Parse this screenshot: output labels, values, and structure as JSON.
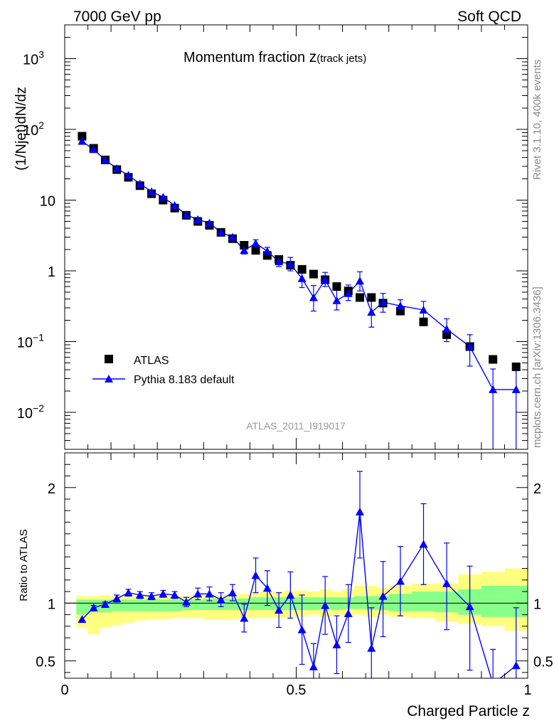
{
  "header": {
    "left": "7000 GeV pp",
    "right": "Soft QCD"
  },
  "side_labels": {
    "top": "Rivet 3.1.10,  400k events",
    "bottom": "mcplots.cern.ch [arXiv:1306.3436]"
  },
  "colors": {
    "data": "#000000",
    "mc": "#0000ff",
    "band_outer": "#ffff7f",
    "band_inner": "#88ff88"
  },
  "chart_data": [
    {
      "type": "scatter",
      "title": "Momentum fraction",
      "title_var": "z",
      "title_sub": "(track jets)",
      "ylabel": "(1/Njet)dN/dz",
      "xlabel": "",
      "yscale": "log",
      "ylim": [
        0.003,
        3000
      ],
      "xlim": [
        0,
        1
      ],
      "y_ticks": [
        {
          "value": 0.01,
          "base": "10",
          "exp": "−2"
        },
        {
          "value": 0.1,
          "base": "10",
          "exp": "−1"
        },
        {
          "value": 1,
          "base": "1",
          "exp": ""
        },
        {
          "value": 10,
          "base": "10",
          "exp": ""
        },
        {
          "value": 100,
          "base": "10",
          "exp": "2"
        },
        {
          "value": 1000,
          "base": "10",
          "exp": "3"
        }
      ],
      "watermark": "ATLAS_2011_I919017",
      "legend": [
        {
          "name": "ATLAS",
          "marker": "square"
        },
        {
          "name": "Pythia 8.183 default",
          "marker": "triangle"
        }
      ],
      "legend_position": "lower-left",
      "series": [
        {
          "name": "ATLAS",
          "x": [
            0.0375,
            0.0625,
            0.0875,
            0.1125,
            0.1375,
            0.1625,
            0.1875,
            0.2125,
            0.2375,
            0.2625,
            0.2875,
            0.3125,
            0.3375,
            0.3625,
            0.3875,
            0.4125,
            0.4375,
            0.4625,
            0.4875,
            0.5125,
            0.5375,
            0.5625,
            0.5875,
            0.6125,
            0.6375,
            0.6625,
            0.6875,
            0.725,
            0.775,
            0.825,
            0.875,
            0.925,
            0.975
          ],
          "y": [
            80,
            54,
            37,
            27,
            21,
            16,
            12.3,
            10,
            7.7,
            6.1,
            5.0,
            4.4,
            3.5,
            2.85,
            2.3,
            1.95,
            1.65,
            1.45,
            1.2,
            1.05,
            0.9,
            0.75,
            0.6,
            0.52,
            0.42,
            0.42,
            0.35,
            0.27,
            0.19,
            0.125,
            0.085,
            0.056,
            0.044
          ]
        },
        {
          "name": "Pythia 8.183 default",
          "x": [
            0.0375,
            0.0625,
            0.0875,
            0.1125,
            0.1375,
            0.1625,
            0.1875,
            0.2125,
            0.2375,
            0.2625,
            0.2875,
            0.3125,
            0.3375,
            0.3625,
            0.3875,
            0.4125,
            0.4375,
            0.4625,
            0.4875,
            0.5125,
            0.5375,
            0.5625,
            0.5875,
            0.6125,
            0.6375,
            0.6625,
            0.6875,
            0.725,
            0.775,
            0.825,
            0.875,
            0.925,
            0.975
          ],
          "y": [
            68,
            52,
            37,
            28,
            22.5,
            17,
            13.2,
            11,
            8.4,
            6.2,
            5.3,
            4.75,
            3.5,
            3.0,
            1.95,
            2.45,
            1.9,
            1.35,
            1.25,
            0.78,
            0.42,
            0.75,
            0.38,
            0.48,
            0.72,
            0.26,
            0.36,
            0.32,
            0.28,
            0.15,
            0.085,
            0.021,
            0.021
          ],
          "err_low": [
            0,
            0,
            0,
            0,
            0,
            0,
            0,
            0,
            0,
            0,
            0,
            0,
            0,
            0,
            0.22,
            0.3,
            0.25,
            0.2,
            0.25,
            0.2,
            0.15,
            0.15,
            0.1,
            0.1,
            0.2,
            0.1,
            0.1,
            0.06,
            0.07,
            0.05,
            0.04,
            0.02,
            0.02
          ],
          "err_high": [
            0,
            0,
            0,
            0,
            0,
            0,
            0,
            0,
            0,
            0,
            0,
            0,
            0,
            0,
            0.22,
            0.3,
            0.25,
            0.2,
            0.3,
            0.3,
            0.2,
            0.2,
            0.15,
            0.15,
            0.25,
            0.12,
            0.12,
            0.07,
            0.09,
            0.06,
            0.04,
            0.02,
            0.02
          ]
        }
      ]
    },
    {
      "type": "scatter",
      "title": "",
      "ylabel": "Ratio to ATLAS",
      "xlabel": "Charged Particle z",
      "ylim": [
        0.35,
        2.3
      ],
      "xlim": [
        0,
        1
      ],
      "y_ticks": [
        {
          "value": 0.5,
          "label": "0.5"
        },
        {
          "value": 1,
          "label": "1"
        },
        {
          "value": 2,
          "label": "2"
        }
      ],
      "x_ticks": [
        {
          "value": 0,
          "label": "0"
        },
        {
          "value": 0.5,
          "label": "0.5"
        },
        {
          "value": 1,
          "label": "1"
        }
      ],
      "reference_line": 1,
      "band_edges": [
        0.025,
        0.05,
        0.075,
        0.1,
        0.125,
        0.15,
        0.175,
        0.2,
        0.225,
        0.25,
        0.275,
        0.3,
        0.325,
        0.35,
        0.375,
        0.4,
        0.425,
        0.45,
        0.475,
        0.5,
        0.525,
        0.55,
        0.575,
        0.6,
        0.625,
        0.65,
        0.675,
        0.7,
        0.75,
        0.8,
        0.85,
        0.9,
        0.95,
        1.0
      ],
      "band_outer_low": [
        0.79,
        0.73,
        0.79,
        0.81,
        0.83,
        0.85,
        0.86,
        0.86,
        0.87,
        0.87,
        0.87,
        0.86,
        0.86,
        0.86,
        0.87,
        0.87,
        0.87,
        0.87,
        0.88,
        0.88,
        0.9,
        0.88,
        0.9,
        0.88,
        0.9,
        0.88,
        0.9,
        0.88,
        0.87,
        0.84,
        0.82,
        0.8,
        0.76
      ],
      "band_outer_high": [
        1.06,
        1.06,
        1.07,
        1.06,
        1.06,
        1.06,
        1.06,
        1.06,
        1.06,
        1.06,
        1.07,
        1.07,
        1.07,
        1.07,
        1.08,
        1.1,
        1.1,
        1.1,
        1.11,
        1.11,
        1.1,
        1.12,
        1.1,
        1.12,
        1.15,
        1.15,
        1.13,
        1.15,
        1.17,
        1.17,
        1.25,
        1.27,
        1.3
      ],
      "band_inner_low": [
        0.9,
        0.92,
        0.92,
        0.93,
        0.93,
        0.93,
        0.93,
        0.93,
        0.93,
        0.94,
        0.94,
        0.94,
        0.94,
        0.94,
        0.94,
        0.94,
        0.94,
        0.94,
        0.94,
        0.94,
        0.94,
        0.95,
        0.94,
        0.95,
        0.95,
        0.94,
        0.94,
        0.93,
        0.93,
        0.92,
        0.9,
        0.88,
        0.88
      ],
      "band_inner_high": [
        1.03,
        1.03,
        1.03,
        1.03,
        1.03,
        1.03,
        1.03,
        1.03,
        1.03,
        1.03,
        1.03,
        1.04,
        1.04,
        1.04,
        1.04,
        1.05,
        1.05,
        1.05,
        1.05,
        1.05,
        1.05,
        1.05,
        1.05,
        1.05,
        1.06,
        1.06,
        1.06,
        1.08,
        1.1,
        1.1,
        1.12,
        1.15,
        1.15
      ],
      "series": [
        {
          "name": "Pythia 8.183 default / ATLAS",
          "x": [
            0.0375,
            0.0625,
            0.0875,
            0.1125,
            0.1375,
            0.1625,
            0.1875,
            0.2125,
            0.2375,
            0.2625,
            0.2875,
            0.3125,
            0.3375,
            0.3625,
            0.3875,
            0.4125,
            0.4375,
            0.4625,
            0.4875,
            0.5125,
            0.5375,
            0.5625,
            0.5875,
            0.6125,
            0.6375,
            0.6625,
            0.6875,
            0.725,
            0.775,
            0.825,
            0.875,
            0.925,
            0.975
          ],
          "y": [
            0.86,
            0.96,
            0.99,
            1.04,
            1.09,
            1.07,
            1.06,
            1.08,
            1.07,
            1.01,
            1.08,
            1.08,
            1.03,
            1.09,
            0.87,
            1.24,
            1.13,
            0.94,
            1.07,
            0.77,
            0.45,
            0.98,
            0.64,
            0.91,
            1.79,
            0.61,
            1.06,
            1.19,
            1.51,
            1.17,
            0.97,
            0.3,
            0.46
          ],
          "err_low": [
            0,
            0.02,
            0.02,
            0.03,
            0.03,
            0.03,
            0.03,
            0.03,
            0.03,
            0.04,
            0.05,
            0.06,
            0.06,
            0.07,
            0.12,
            0.15,
            0.15,
            0.15,
            0.2,
            0.3,
            0.15,
            0.25,
            0.25,
            0.25,
            0.4,
            0.3,
            0.35,
            0.3,
            0.35,
            0.4,
            0.55,
            0.4,
            0.4
          ],
          "err_high": [
            0,
            0.02,
            0.02,
            0.03,
            0.03,
            0.03,
            0.03,
            0.03,
            0.03,
            0.04,
            0.05,
            0.06,
            0.06,
            0.07,
            0.12,
            0.15,
            0.15,
            0.15,
            0.2,
            0.3,
            0.2,
            0.25,
            0.25,
            0.25,
            0.35,
            0.35,
            0.3,
            0.3,
            0.35,
            0.35,
            0.35,
            0.3,
            0.5
          ]
        }
      ]
    }
  ]
}
